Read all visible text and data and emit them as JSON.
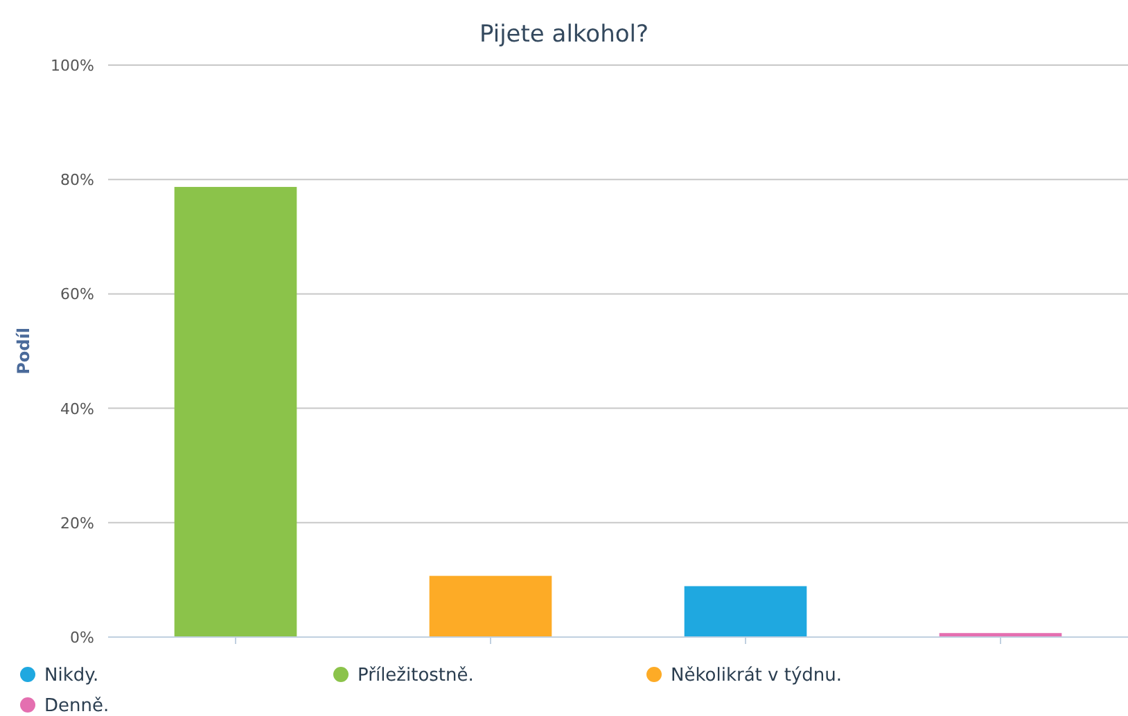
{
  "chart_data": {
    "type": "bar",
    "title": "Pijete alkohol?",
    "ylabel": "Podíl",
    "categories": [
      null,
      null,
      null,
      null
    ],
    "series": [
      {
        "name": "Nikdy.",
        "color": "#1fa8e0",
        "values": [
          null,
          null,
          8.9,
          null
        ]
      },
      {
        "name": "Příležitostně.",
        "color": "#8bc34a",
        "values": [
          78.7,
          null,
          null,
          null
        ]
      },
      {
        "name": "Několikrát v týdnu.",
        "color": "#fdab26",
        "values": [
          null,
          10.7,
          null,
          null
        ]
      },
      {
        "name": "Denně.",
        "color": "#e46fb0",
        "values": [
          null,
          null,
          null,
          0.7
        ]
      }
    ],
    "ylim": [
      0,
      100
    ],
    "yticks": [
      {
        "value": 0,
        "label": "0%"
      },
      {
        "value": 20,
        "label": "20%"
      },
      {
        "value": 40,
        "label": "40%"
      },
      {
        "value": 60,
        "label": "60%"
      },
      {
        "value": 80,
        "label": "80%"
      },
      {
        "value": 100,
        "label": "100%"
      }
    ],
    "grid": "y",
    "legend": "bottom"
  }
}
